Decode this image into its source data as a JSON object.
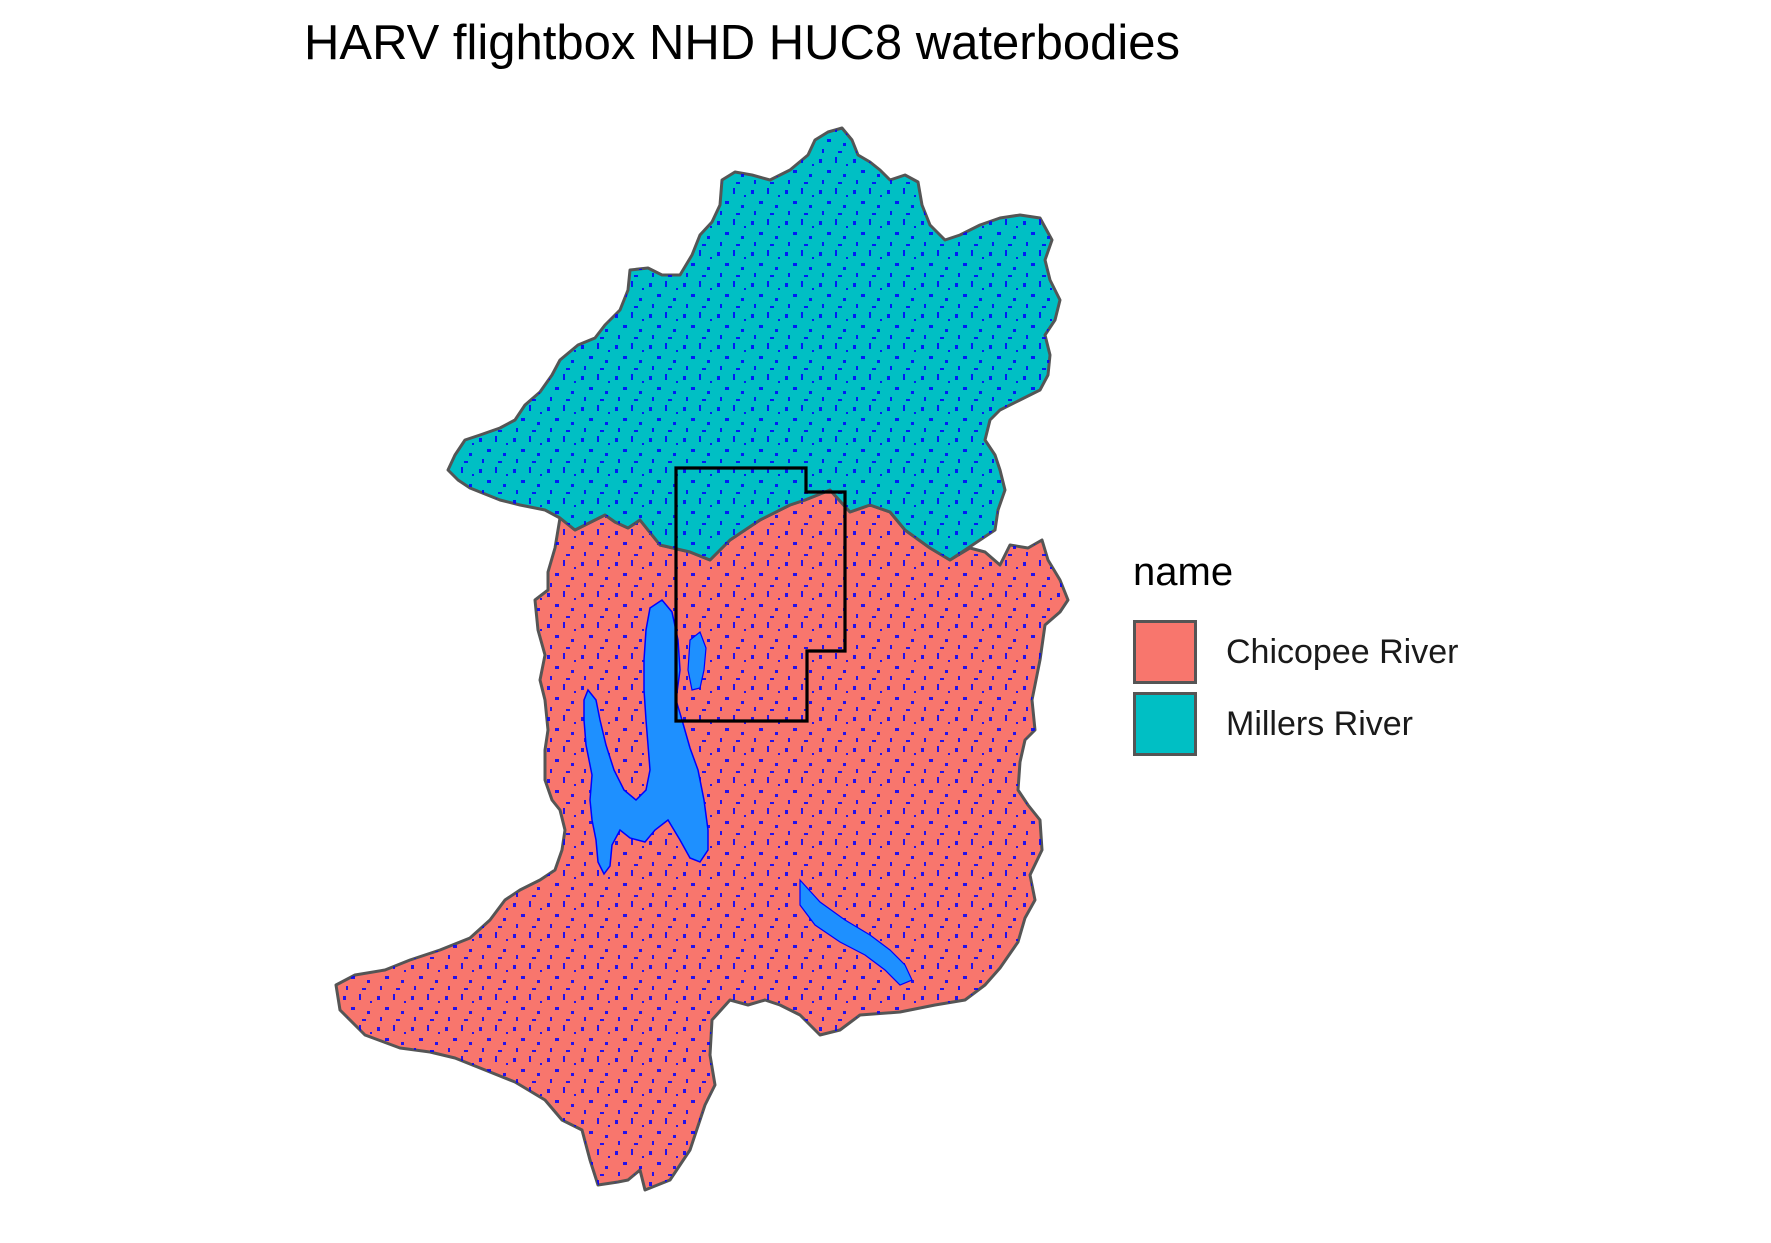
{
  "title": "HARV flightbox NHD HUC8 waterbodies",
  "legend": {
    "title": "name",
    "items": [
      {
        "label": "Chicopee River",
        "color": "#F8766D"
      },
      {
        "label": "Millers River",
        "color": "#00BFC4"
      }
    ]
  },
  "colors": {
    "waterbody_fill": "#1E90FF",
    "waterbody_outline": "#0000FF",
    "watershed_outline": "#555555",
    "flightbox_outline": "#000000"
  }
}
